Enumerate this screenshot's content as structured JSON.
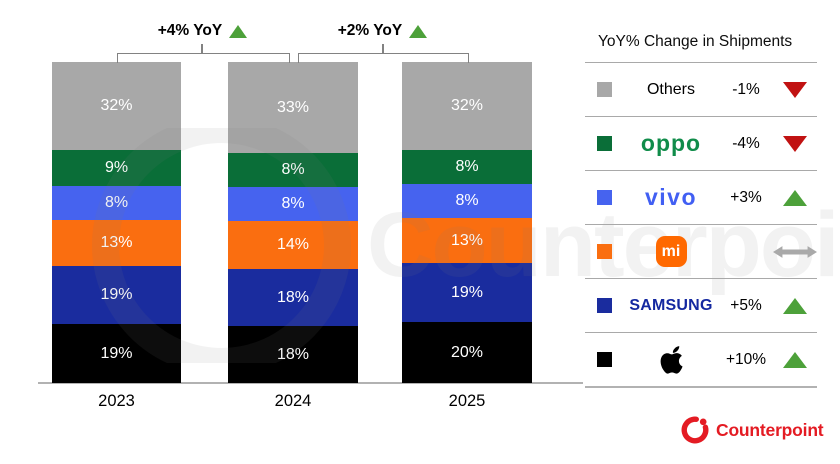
{
  "chart_data": {
    "type": "bar",
    "stacked": true,
    "title": "",
    "categories": [
      "2023",
      "2024",
      "2025"
    ],
    "series": [
      {
        "name": "Others",
        "color": "#a8a8a8",
        "values": [
          32,
          33,
          32
        ]
      },
      {
        "name": "OPPO",
        "color": "#0a6e38",
        "values": [
          9,
          8,
          8
        ]
      },
      {
        "name": "vivo",
        "color": "#4663ef",
        "values": [
          8,
          8,
          8
        ]
      },
      {
        "name": "Xiaomi",
        "color": "#fa6e10",
        "values": [
          13,
          14,
          13
        ]
      },
      {
        "name": "Samsung",
        "color": "#1a2c9e",
        "values": [
          19,
          18,
          19
        ]
      },
      {
        "name": "Apple",
        "color": "#000000",
        "values": [
          19,
          18,
          20
        ]
      }
    ],
    "value_suffix": "%",
    "segment_order_top_to_bottom": [
      "Others",
      "OPPO",
      "vivo",
      "Xiaomi",
      "Samsung",
      "Apple"
    ],
    "ylim": [
      0,
      100
    ],
    "grid": false,
    "legend_position": "right",
    "annotations": [
      {
        "label": "+4% YoY",
        "direction": "up",
        "between": [
          "2023",
          "2024"
        ]
      },
      {
        "label": "+2% YoY",
        "direction": "up",
        "between": [
          "2024",
          "2025"
        ]
      }
    ]
  },
  "legend": {
    "title": "YoY% Change in Shipments",
    "rows": [
      {
        "brand": "Others",
        "swatch": "#a8a8a8",
        "logo_type": "plain",
        "logo_text": "Others",
        "change": "-1%",
        "direction": "down"
      },
      {
        "brand": "OPPO",
        "swatch": "#0a6e38",
        "logo_type": "oppo",
        "logo_text": "oppo",
        "change": "-4%",
        "direction": "down"
      },
      {
        "brand": "vivo",
        "swatch": "#4663ef",
        "logo_type": "vivo",
        "logo_text": "vivo",
        "change": "+3%",
        "direction": "up"
      },
      {
        "brand": "Xiaomi",
        "swatch": "#fa6e10",
        "logo_type": "mi",
        "logo_text": "mi",
        "change": "",
        "direction": "flat"
      },
      {
        "brand": "Samsung",
        "swatch": "#1a2c9e",
        "logo_type": "samsung",
        "logo_text": "SAMSUNG",
        "change": "+5%",
        "direction": "up"
      },
      {
        "brand": "Apple",
        "swatch": "#000000",
        "logo_type": "apple",
        "logo_text": "",
        "change": "+10%",
        "direction": "up"
      }
    ]
  },
  "watermark": {
    "text": "Counterpoint"
  },
  "footer": {
    "logo_text": "Counterpoint"
  },
  "colors": {
    "up_green": "#4da13a",
    "down_red": "#c11212",
    "flat_gray": "#a9a9a9",
    "bracket_gray": "#828282",
    "axis_gray": "#b2b2b2",
    "brand_red": "#e41b23",
    "mi_badge_orange": "#ff6900",
    "oppo_logo_green": "#108c4a",
    "vivo_logo_blue": "#415ff3",
    "samsung_logo_navy": "#1428a0"
  }
}
